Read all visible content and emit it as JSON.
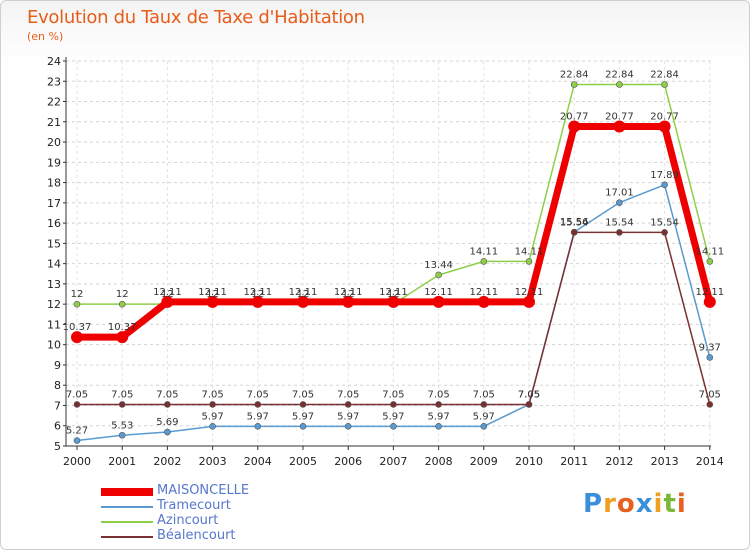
{
  "header": {
    "title": "Evolution du Taux de Taxe d'Habitation",
    "subtitle": "(en %)"
  },
  "logo": {
    "letters": [
      "P",
      "r",
      "o",
      "x",
      "i",
      "t",
      "i"
    ],
    "colors": [
      "#3a8fd8",
      "#f0a020",
      "#e86020",
      "#3a8fd8",
      "#f0a020",
      "#7ab83a",
      "#e86020"
    ]
  },
  "chart_data": {
    "type": "line",
    "x": [
      2000,
      2001,
      2002,
      2003,
      2004,
      2005,
      2006,
      2007,
      2008,
      2009,
      2010,
      2011,
      2012,
      2013,
      2014
    ],
    "ylim": [
      5,
      24
    ],
    "yticks": [
      5,
      6,
      7,
      8,
      9,
      10,
      11,
      12,
      13,
      14,
      15,
      16,
      17,
      18,
      19,
      20,
      21,
      22,
      23,
      24
    ],
    "grid": true,
    "legend_position": "bottom-left",
    "series": [
      {
        "name": "Azincourt",
        "color": "#8ecf4a",
        "width": 1.5,
        "marker": 3,
        "values": [
          12,
          12,
          12,
          12,
          12,
          12,
          12,
          12,
          13.44,
          14.11,
          14.11,
          22.84,
          22.84,
          22.84,
          14.11
        ],
        "labels": [
          "12",
          "12",
          "12",
          "12",
          "12",
          "12",
          "12",
          "12",
          "13.44",
          "14.11",
          "14.11",
          "22.84",
          "22.84",
          "22.84",
          "14.11"
        ]
      },
      {
        "name": "Tramecourt",
        "color": "#5a9ad0",
        "width": 1.5,
        "marker": 3,
        "values": [
          5.27,
          5.53,
          5.69,
          5.97,
          5.97,
          5.97,
          5.97,
          5.97,
          5.97,
          5.97,
          7.05,
          15.56,
          17.01,
          17.89,
          9.37
        ],
        "labels": [
          "5.27",
          "5.53",
          "5.69",
          "5.97",
          "5.97",
          "5.97",
          "5.97",
          "5.97",
          "5.97",
          "5.97",
          "7.05",
          "15.56",
          "17.01",
          "17.89",
          "9.37"
        ]
      },
      {
        "name": "Béalencourt",
        "color": "#7a3030",
        "width": 1.5,
        "marker": 3,
        "values": [
          7.05,
          7.05,
          7.05,
          7.05,
          7.05,
          7.05,
          7.05,
          7.05,
          7.05,
          7.05,
          7.05,
          15.54,
          15.54,
          15.54,
          7.05
        ],
        "labels": [
          "7.05",
          "7.05",
          "7.05",
          "7.05",
          "7.05",
          "7.05",
          "7.05",
          "7.05",
          "7.05",
          "7.05",
          "7.05",
          "15.54",
          "15.54",
          "15.54",
          "7.05"
        ]
      },
      {
        "name": "MAISONCELLE",
        "color": "#ee0000",
        "width": 7,
        "marker": 6,
        "values": [
          10.37,
          10.37,
          12.11,
          12.11,
          12.11,
          12.11,
          12.11,
          12.11,
          12.11,
          12.11,
          12.11,
          20.77,
          20.77,
          20.77,
          12.11
        ],
        "labels": [
          "10.37",
          "10.37",
          "12.11",
          "12.11",
          "12.11",
          "12.11",
          "12.11",
          "12.11",
          "12.11",
          "12.11",
          "12.11",
          "20.77",
          "20.77",
          "20.77",
          "12.11"
        ]
      }
    ],
    "legend": [
      "MAISONCELLE",
      "Tramecourt",
      "Azincourt",
      "Béalencourt"
    ]
  }
}
